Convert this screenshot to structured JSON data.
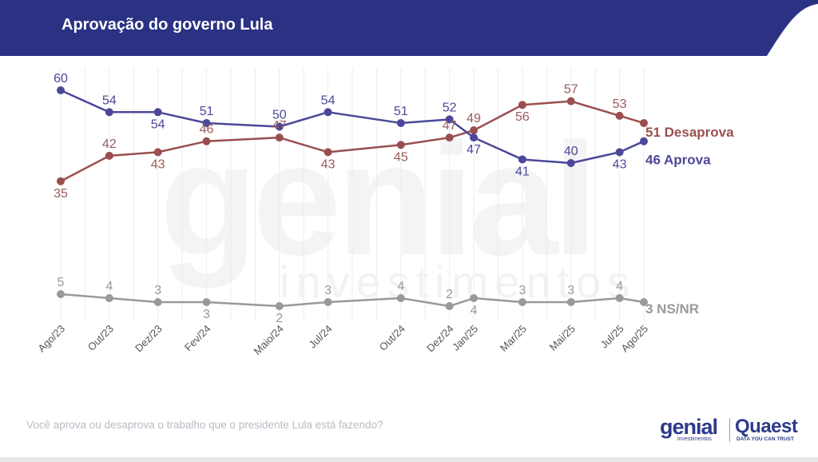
{
  "header": {
    "title": "Aprovação do governo Lula",
    "bg_color": "#2b3283"
  },
  "footer": {
    "question": "Você aprova ou desaprova o trabalho que o presidente Lula está fazendo?"
  },
  "logos": {
    "genial_main": "genial",
    "genial_sub": "investimentos",
    "quaest_main": "Quaest",
    "quaest_sub": "DATA YOU CAN TRUST"
  },
  "watermark": {
    "main": "genial",
    "sub": "investimentos"
  },
  "chart_data": {
    "type": "line",
    "categories": [
      "Ago/23",
      "Out/23",
      "Dez/23",
      "Fev/24",
      "Maio/24",
      "Jul/24",
      "Out/24",
      "Dez/24",
      "Jan/25",
      "Mar/25",
      "Mai/25",
      "Jul/25",
      "Ago/25"
    ],
    "x_month_index": [
      0,
      2,
      4,
      6,
      9,
      11,
      14,
      16,
      17,
      19,
      21,
      23,
      24
    ],
    "series": [
      {
        "name": "Aprova",
        "end_label": "46 Aprova",
        "color": "#4b4899",
        "values": [
          60,
          54,
          54,
          51,
          50,
          54,
          51,
          52,
          47,
          41,
          40,
          43,
          46
        ]
      },
      {
        "name": "Desaprova",
        "end_label": "51 Desaprova",
        "color": "#9a4f4f",
        "values": [
          35,
          42,
          43,
          46,
          47,
          43,
          45,
          47,
          49,
          56,
          57,
          53,
          51
        ]
      },
      {
        "name": "NS/NR",
        "end_label": "3 NS/NR",
        "color": "#999999",
        "values": [
          5,
          4,
          3,
          3,
          2,
          3,
          4,
          2,
          4,
          3,
          3,
          4,
          3
        ]
      }
    ],
    "grid": "vertical",
    "legend": "end-of-line labels"
  }
}
